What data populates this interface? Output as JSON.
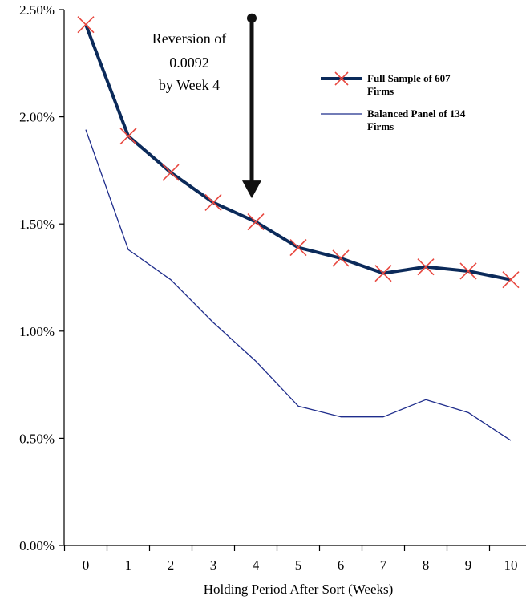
{
  "chart_data": {
    "type": "line",
    "title": "",
    "xlabel": "Holding Period After Sort (Weeks)",
    "ylabel": "",
    "x": [
      0,
      1,
      2,
      3,
      4,
      5,
      6,
      7,
      8,
      9,
      10
    ],
    "x_tick_labels": [
      "0",
      "1",
      "2",
      "3",
      "4",
      "5",
      "6",
      "7",
      "8",
      "9",
      "10"
    ],
    "ylim": [
      0,
      0.025
    ],
    "y_ticks": [
      0,
      0.005,
      0.01,
      0.015,
      0.02,
      0.025
    ],
    "y_tick_labels": [
      "0.00%",
      "0.50%",
      "1.00%",
      "1.50%",
      "2.00%",
      "2.50%"
    ],
    "grid": false,
    "legend_position": "top-right",
    "series": [
      {
        "name_lines": [
          "Full Sample of 607",
          "Firms"
        ],
        "values": [
          0.0243,
          0.0191,
          0.0174,
          0.016,
          0.0151,
          0.0139,
          0.0134,
          0.0127,
          0.013,
          0.0128,
          0.0124
        ],
        "color": "#0b2a5a",
        "marker_color": "#e8473f",
        "marker": "x"
      },
      {
        "name_lines": [
          "Balanced Panel of 134",
          "Firms"
        ],
        "values": [
          0.0194,
          0.0138,
          0.0124,
          0.0104,
          0.0086,
          0.0065,
          0.006,
          0.006,
          0.0068,
          0.0062,
          0.0049
        ],
        "color": "#1f2d8c",
        "marker": "none"
      }
    ],
    "annotation": {
      "lines": [
        "Reversion of",
        "0.0092",
        "by Week 4"
      ],
      "arrow_x": 4,
      "arrow_from": 0.0246,
      "arrow_to": 0.0162
    }
  }
}
